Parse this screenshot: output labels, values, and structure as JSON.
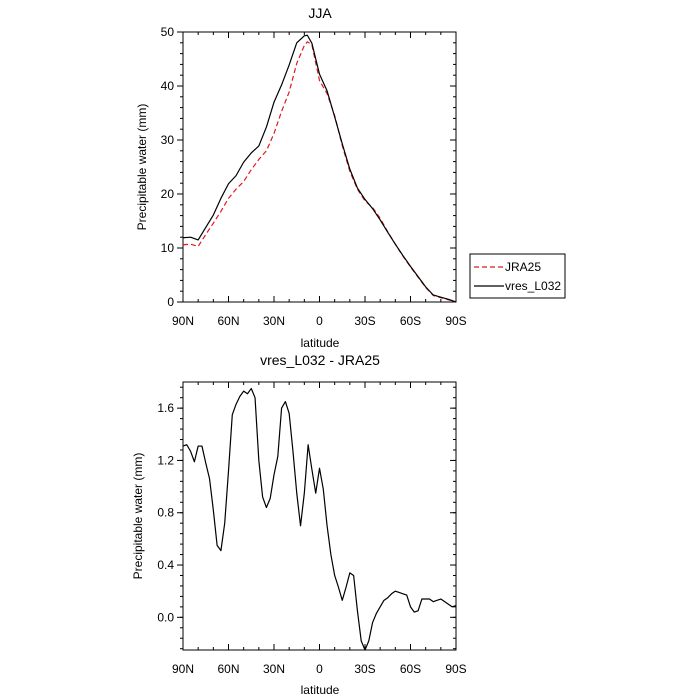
{
  "chart_data": [
    {
      "type": "line",
      "title": "JJA",
      "xlabel": "latitude",
      "ylabel": "Precipitable water (mm)",
      "xlim": [
        90,
        -90
      ],
      "ylim": [
        0,
        50
      ],
      "xticks": [
        90,
        60,
        30,
        0,
        -30,
        -60,
        -90
      ],
      "xtick_labels": [
        "90N",
        "60N",
        "30N",
        "0",
        "30S",
        "60S",
        "90S"
      ],
      "yticks": [
        0,
        10,
        20,
        30,
        40,
        50
      ],
      "ytick_labels": [
        "0",
        "10",
        "20",
        "30",
        "40",
        "50"
      ],
      "legend": "outside-right",
      "series": [
        {
          "name": "JRA25",
          "color": "#e0191e",
          "dash": "dashed",
          "x": [
            90,
            85,
            80,
            75,
            70,
            65,
            60,
            55,
            50,
            45,
            40,
            35,
            30,
            25,
            20,
            15,
            10,
            8,
            5,
            0,
            -5,
            -10,
            -15,
            -20,
            -25,
            -30,
            -35,
            -40,
            -45,
            -50,
            -55,
            -60,
            -65,
            -70,
            -75,
            -80,
            -85,
            -90
          ],
          "y": [
            10.6,
            10.7,
            10.3,
            12.5,
            14.6,
            16.8,
            19.2,
            20.9,
            22.3,
            24.5,
            26.4,
            28.0,
            31.2,
            35.3,
            38.9,
            44.2,
            47.5,
            48.2,
            47.6,
            41.0,
            38.6,
            34.5,
            29.0,
            24.2,
            20.9,
            18.7,
            17.5,
            15.5,
            13.0,
            10.7,
            8.5,
            6.5,
            4.6,
            2.7,
            1.2,
            0.8,
            0.4,
            0.0
          ]
        },
        {
          "name": "vres_L032",
          "color": "#000000",
          "dash": "solid",
          "x": [
            90,
            85,
            80,
            75,
            70,
            65,
            60,
            55,
            50,
            45,
            40,
            35,
            30,
            25,
            20,
            15,
            10,
            8,
            5,
            0,
            -5,
            -10,
            -15,
            -20,
            -25,
            -30,
            -35,
            -40,
            -45,
            -50,
            -55,
            -60,
            -65,
            -70,
            -75,
            -80,
            -85,
            -90
          ],
          "y": [
            11.9,
            12.0,
            11.5,
            13.8,
            16.1,
            19.2,
            21.9,
            23.4,
            25.9,
            27.6,
            28.9,
            32.4,
            37.0,
            40.2,
            43.9,
            48.0,
            49.3,
            49.4,
            47.9,
            42.2,
            39.1,
            34.3,
            29.3,
            24.6,
            21.1,
            19.0,
            17.3,
            15.2,
            12.9,
            10.7,
            8.6,
            6.6,
            4.7,
            2.8,
            1.3,
            0.9,
            0.5,
            0.0
          ]
        }
      ]
    },
    {
      "type": "line",
      "title": "vres_L032 - JRA25",
      "xlabel": "latitude",
      "ylabel": "Precipitable water (mm)",
      "xlim": [
        90,
        -90
      ],
      "ylim": [
        -0.25,
        1.8
      ],
      "xticks": [
        90,
        60,
        30,
        0,
        -30,
        -60,
        -90
      ],
      "xtick_labels": [
        "90N",
        "60N",
        "30N",
        "0",
        "30S",
        "60S",
        "90S"
      ],
      "yticks": [
        0.0,
        0.4,
        0.8,
        1.2,
        1.6
      ],
      "ytick_labels": [
        "0.0",
        "0.4",
        "0.8",
        "1.2",
        "1.6"
      ],
      "series": [
        {
          "color": "#000000",
          "dash": "solid",
          "x": [
            90,
            87.5,
            85,
            82.5,
            80,
            77.5,
            75,
            72.5,
            70,
            67.5,
            65,
            62.5,
            60,
            57.5,
            55,
            52.5,
            50,
            47.5,
            45,
            42.5,
            40,
            37.5,
            35,
            32.5,
            30,
            27.5,
            25,
            22.5,
            20,
            17.5,
            15,
            12.5,
            10,
            7.5,
            5,
            2.5,
            0,
            -2.5,
            -5,
            -7.5,
            -10,
            -12.5,
            -15,
            -17.5,
            -20,
            -22.5,
            -25,
            -27.5,
            -30,
            -32.5,
            -35,
            -37.5,
            -40,
            -42.5,
            -45,
            -47.5,
            -50,
            -52.5,
            -55,
            -57.5,
            -60,
            -62.5,
            -65,
            -67.5,
            -70,
            -72.5,
            -75,
            -77.5,
            -80,
            -82.5,
            -85,
            -87.5,
            -90
          ],
          "y": [
            1.31,
            1.32,
            1.27,
            1.19,
            1.31,
            1.31,
            1.18,
            1.06,
            0.82,
            0.55,
            0.51,
            0.72,
            1.12,
            1.55,
            1.63,
            1.69,
            1.73,
            1.71,
            1.75,
            1.68,
            1.2,
            0.92,
            0.84,
            0.91,
            1.09,
            1.23,
            1.6,
            1.65,
            1.56,
            1.27,
            0.95,
            0.7,
            0.95,
            1.32,
            1.13,
            0.95,
            1.14,
            0.98,
            0.7,
            0.48,
            0.32,
            0.23,
            0.13,
            0.23,
            0.34,
            0.32,
            0.05,
            -0.18,
            -0.25,
            -0.18,
            -0.04,
            0.03,
            0.08,
            0.13,
            0.15,
            0.18,
            0.2,
            0.19,
            0.18,
            0.17,
            0.08,
            0.04,
            0.05,
            0.14,
            0.14,
            0.14,
            0.12,
            0.13,
            0.14,
            0.12,
            0.1,
            0.08,
            0.09
          ]
        }
      ]
    }
  ]
}
